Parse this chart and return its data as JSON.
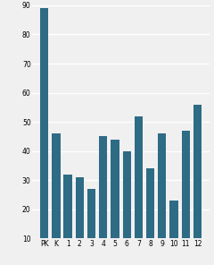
{
  "categories": [
    "PK",
    "K",
    "1",
    "2",
    "3",
    "4",
    "5",
    "6",
    "7",
    "8",
    "9",
    "10",
    "11",
    "12"
  ],
  "values": [
    89,
    46,
    32,
    31,
    27,
    45,
    44,
    40,
    52,
    34,
    46,
    23,
    47,
    56
  ],
  "bar_color": "#2e6b85",
  "ylim": [
    10,
    90
  ],
  "yticks": [
    10,
    20,
    30,
    40,
    50,
    60,
    70,
    80,
    90
  ],
  "background_color": "#f0f0f0",
  "bar_width": 0.7,
  "tick_fontsize": 5.5,
  "grid_color": "#ffffff",
  "grid_linewidth": 1.0
}
